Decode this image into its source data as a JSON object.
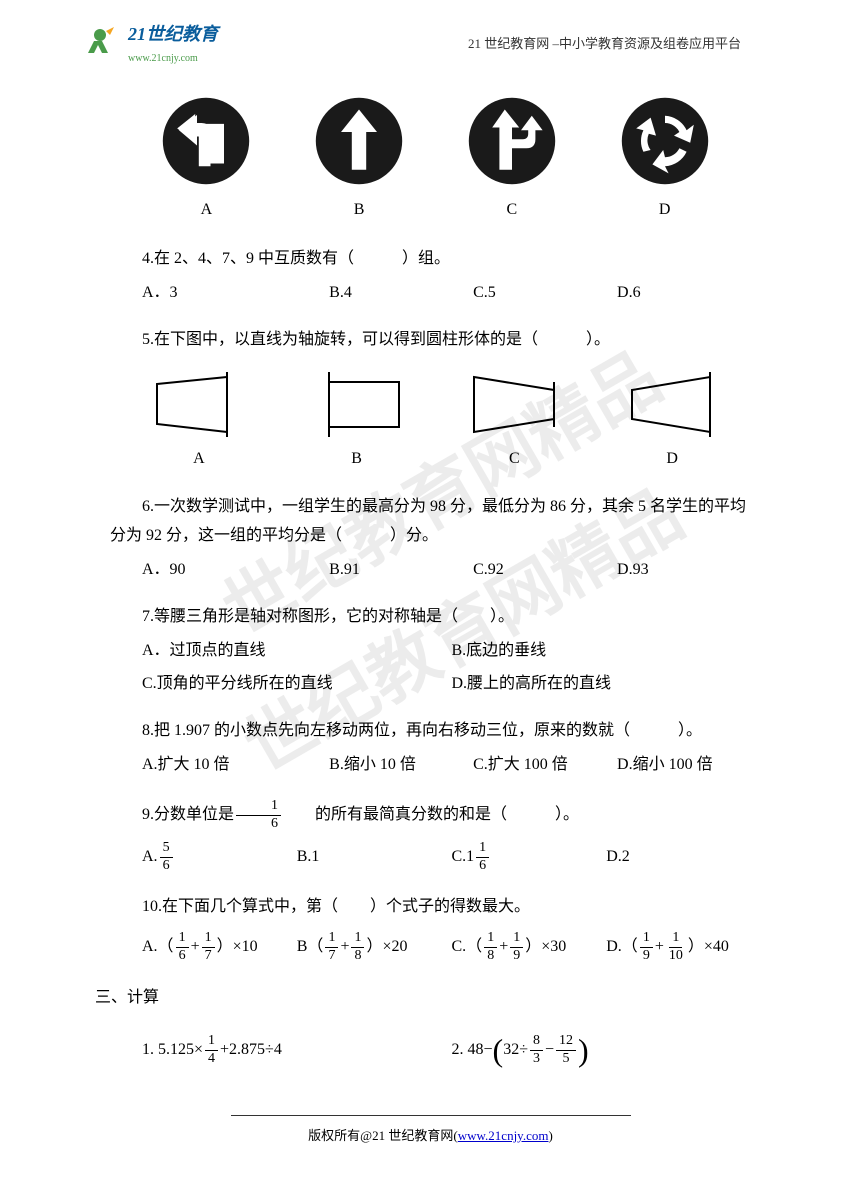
{
  "header": {
    "logo_text_top": "21世纪教育",
    "logo_text_bottom": "www.21cnjy.com",
    "right_text": "21 世纪教育网  –中小学教育资源及组卷应用平台"
  },
  "signs": {
    "labels": [
      "A",
      "B",
      "C",
      "D"
    ],
    "circle_color": "#1a1a1a",
    "arrow_color": "#ffffff"
  },
  "q4": {
    "text": "4.在 2、4、7、9 中互质数有（　　　）组。",
    "opts": [
      "A．3",
      "B.4",
      "C.5",
      "D.6"
    ]
  },
  "q5": {
    "text": "5.在下图中，以直线为轴旋转，可以得到圆柱形体的是（　　　）。",
    "labels": [
      "A",
      "B",
      "C",
      "D"
    ],
    "line_color": "#000000"
  },
  "q6": {
    "text1": "6.一次数学测试中，一组学生的最高分为 98 分，最低分为 86 分，其余 5 名学生的平均",
    "text2": "分为 92 分，这一组的平均分是（　　　）分。",
    "opts": [
      "A．90",
      "B.91",
      "C.92",
      "D.93"
    ]
  },
  "q7": {
    "text": "7.等腰三角形是轴对称图形，它的对称轴是（　　）。",
    "optA": "A．过顶点的直线",
    "optB": "B.底边的垂线",
    "optC": "C.顶角的平分线所在的直线",
    "optD": "D.腰上的高所在的直线"
  },
  "q8": {
    "text": "8.把 1.907 的小数点先向左移动两位，再向右移动三位，原来的数就（　　　）。",
    "opts": [
      "A.扩大 10 倍",
      "B.缩小 10 倍",
      "C.扩大 100 倍",
      "D.缩小 100 倍"
    ]
  },
  "q9": {
    "text_pre": "9.分数单位是 ",
    "text_post": " 的所有最简真分数的和是（　　　）。",
    "frac_main": {
      "num": "1",
      "den": "6"
    },
    "optA_pre": "A. ",
    "optA_frac": {
      "num": "5",
      "den": "6"
    },
    "optB": "B.1",
    "optC_pre": "C.1",
    "optC_frac": {
      "num": "1",
      "den": "6"
    },
    "optD": "D.2"
  },
  "q10": {
    "text": "10.在下面几个算式中，第（　　）个式子的得数最大。",
    "opts": [
      {
        "label": "A.（",
        "f1": {
          "num": "1",
          "den": "6"
        },
        "plus": " + ",
        "f2": {
          "num": "1",
          "den": "7"
        },
        "tail": "）×10"
      },
      {
        "label": "B（",
        "f1": {
          "num": "1",
          "den": "7"
        },
        "plus": " +",
        "f2": {
          "num": "1",
          "den": "8"
        },
        "tail": "）×20"
      },
      {
        "label": "C.（",
        "f1": {
          "num": "1",
          "den": "8"
        },
        "plus": " +",
        "f2": {
          "num": "1",
          "den": "9"
        },
        "tail": "）×30"
      },
      {
        "label": "D.（",
        "f1": {
          "num": "1",
          "den": "9"
        },
        "plus": " + ",
        "f2": {
          "num": "1",
          "den": "10"
        },
        "tail": "）×40"
      }
    ]
  },
  "section3": {
    "title": "三、计算",
    "calc1_pre": "1. 5.125×",
    "calc1_frac": {
      "num": "1",
      "den": "4"
    },
    "calc1_post": "+2.875÷4",
    "calc2_pre": "2. 48−",
    "calc2_inner_pre": "32÷",
    "calc2_f1": {
      "num": "8",
      "den": "3"
    },
    "calc2_minus": "−",
    "calc2_f2": {
      "num": "12",
      "den": "5"
    }
  },
  "footer": {
    "text_pre": "版权所有@21 世纪教育网(",
    "link": "www.21cnjy.com",
    "text_post": ")"
  },
  "watermark_color": "#888888"
}
